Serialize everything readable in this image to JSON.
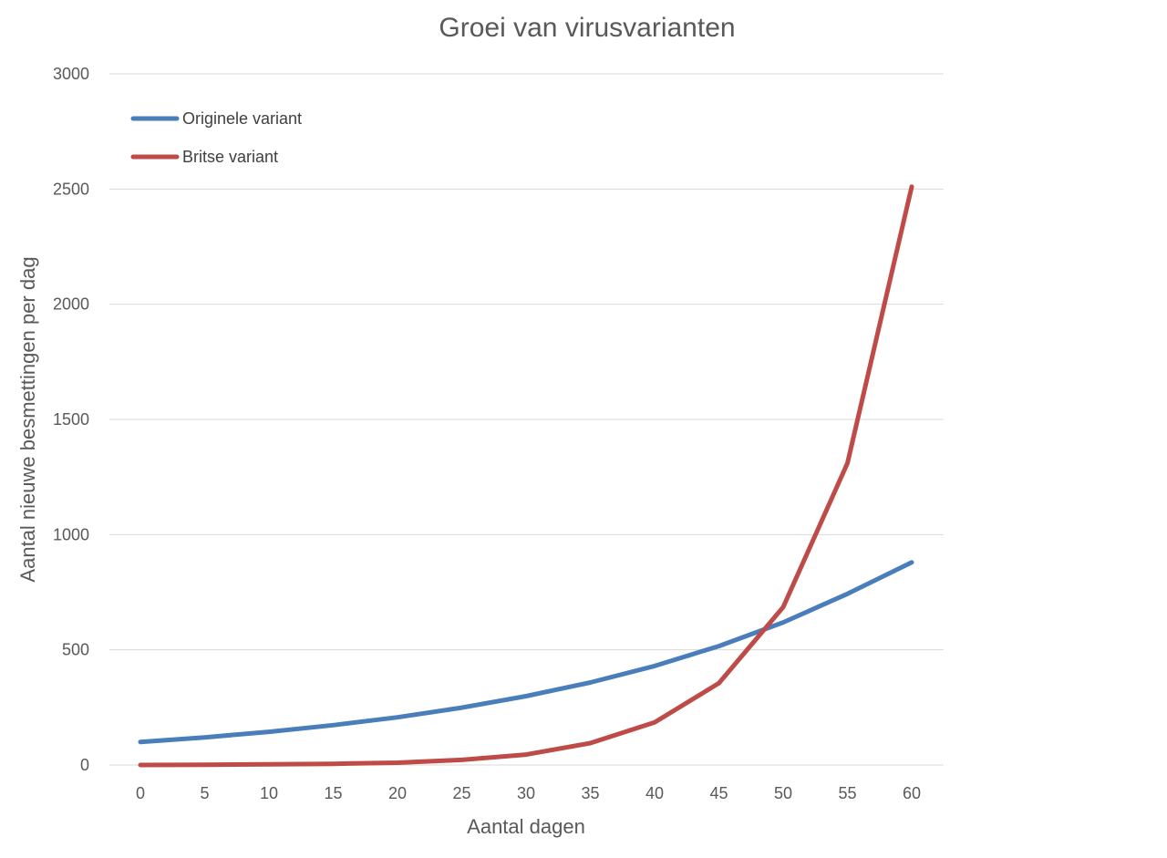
{
  "chart_data": {
    "type": "line",
    "title": "Groei van virusvarianten",
    "xlabel": "Aantal dagen",
    "ylabel": "Aantal nieuwe besmettingen per dag",
    "x": [
      0,
      5,
      10,
      15,
      20,
      25,
      30,
      35,
      40,
      45,
      50,
      55,
      60
    ],
    "x_ticks": [
      "0",
      "5",
      "10",
      "15",
      "20",
      "25",
      "30",
      "35",
      "40",
      "45",
      "50",
      "55",
      "60"
    ],
    "ylim": [
      0,
      3000
    ],
    "y_ticks": [
      "0",
      "500",
      "1000",
      "1500",
      "2000",
      "2500",
      "3000"
    ],
    "grid": true,
    "legend_position": "top-left",
    "series": [
      {
        "name": "Originele variant",
        "color": "#4a7ebb",
        "values": [
          100,
          120,
          144,
          173,
          207,
          249,
          299,
          358,
          430,
          516,
          619,
          743,
          880
        ]
      },
      {
        "name": "Britse variant",
        "color": "#be4b48",
        "values": [
          0,
          1,
          3,
          5,
          10,
          22,
          45,
          95,
          185,
          355,
          685,
          1310,
          2510
        ]
      }
    ]
  }
}
